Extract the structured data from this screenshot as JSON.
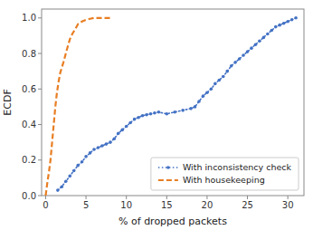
{
  "chart_data": {
    "type": "line",
    "title": "",
    "xlabel": "% of dropped packets",
    "ylabel": "ECDF",
    "xlim": [
      -0.5,
      32
    ],
    "ylim": [
      0.0,
      1.05
    ],
    "xticks": [
      0,
      5,
      10,
      15,
      20,
      25,
      30
    ],
    "yticks": [
      {
        "value": 0.0,
        "label": "0.0"
      },
      0.2,
      0.4,
      0.6,
      0.8,
      {
        "value": 1.0,
        "label": "1.0"
      }
    ],
    "grid": false,
    "legend": "lower right",
    "series": [
      {
        "name": "With inconsistency check",
        "color": "#4472C4",
        "line_style": "dotted",
        "marker": "dot",
        "x": [
          1.5,
          2.0,
          2.5,
          3.0,
          3.5,
          4.0,
          4.5,
          5.0,
          5.5,
          6.0,
          6.5,
          7.0,
          7.5,
          8.0,
          8.5,
          9.0,
          9.5,
          10.0,
          10.5,
          11.0,
          11.5,
          12.0,
          12.5,
          13.0,
          13.5,
          14.0,
          15.0,
          16.0,
          17.0,
          18.0,
          18.5,
          19.0,
          19.5,
          20.0,
          20.5,
          21.0,
          21.5,
          22.0,
          22.5,
          23.0,
          23.5,
          24.0,
          24.5,
          25.0,
          25.5,
          26.0,
          26.5,
          27.0,
          27.5,
          28.0,
          28.5,
          29.0,
          29.5,
          30.0,
          30.5,
          31.0
        ],
        "values": [
          0.03,
          0.05,
          0.08,
          0.11,
          0.14,
          0.17,
          0.19,
          0.22,
          0.24,
          0.26,
          0.27,
          0.28,
          0.29,
          0.3,
          0.32,
          0.35,
          0.37,
          0.39,
          0.41,
          0.43,
          0.44,
          0.45,
          0.455,
          0.46,
          0.465,
          0.47,
          0.46,
          0.47,
          0.48,
          0.49,
          0.5,
          0.53,
          0.56,
          0.58,
          0.6,
          0.63,
          0.65,
          0.67,
          0.7,
          0.73,
          0.75,
          0.77,
          0.79,
          0.81,
          0.83,
          0.85,
          0.87,
          0.89,
          0.91,
          0.93,
          0.95,
          0.96,
          0.97,
          0.98,
          0.99,
          1.0
        ]
      },
      {
        "name": "With housekeeping",
        "color": "#E87E23",
        "line_style": "dashed",
        "x": [
          0.0,
          0.2,
          0.4,
          0.6,
          0.8,
          1.0,
          1.2,
          1.4,
          1.6,
          1.8,
          2.0,
          2.2,
          2.5,
          2.8,
          3.0,
          3.3,
          3.7,
          4.0,
          4.5,
          5.0,
          5.5,
          6.0,
          6.5,
          7.0,
          7.5,
          8.0
        ],
        "values": [
          0.0,
          0.07,
          0.13,
          0.2,
          0.3,
          0.4,
          0.5,
          0.58,
          0.64,
          0.69,
          0.72,
          0.75,
          0.8,
          0.85,
          0.88,
          0.91,
          0.94,
          0.965,
          0.98,
          0.99,
          0.995,
          1.0,
          1.0,
          1.0,
          1.0,
          1.0
        ]
      }
    ]
  }
}
